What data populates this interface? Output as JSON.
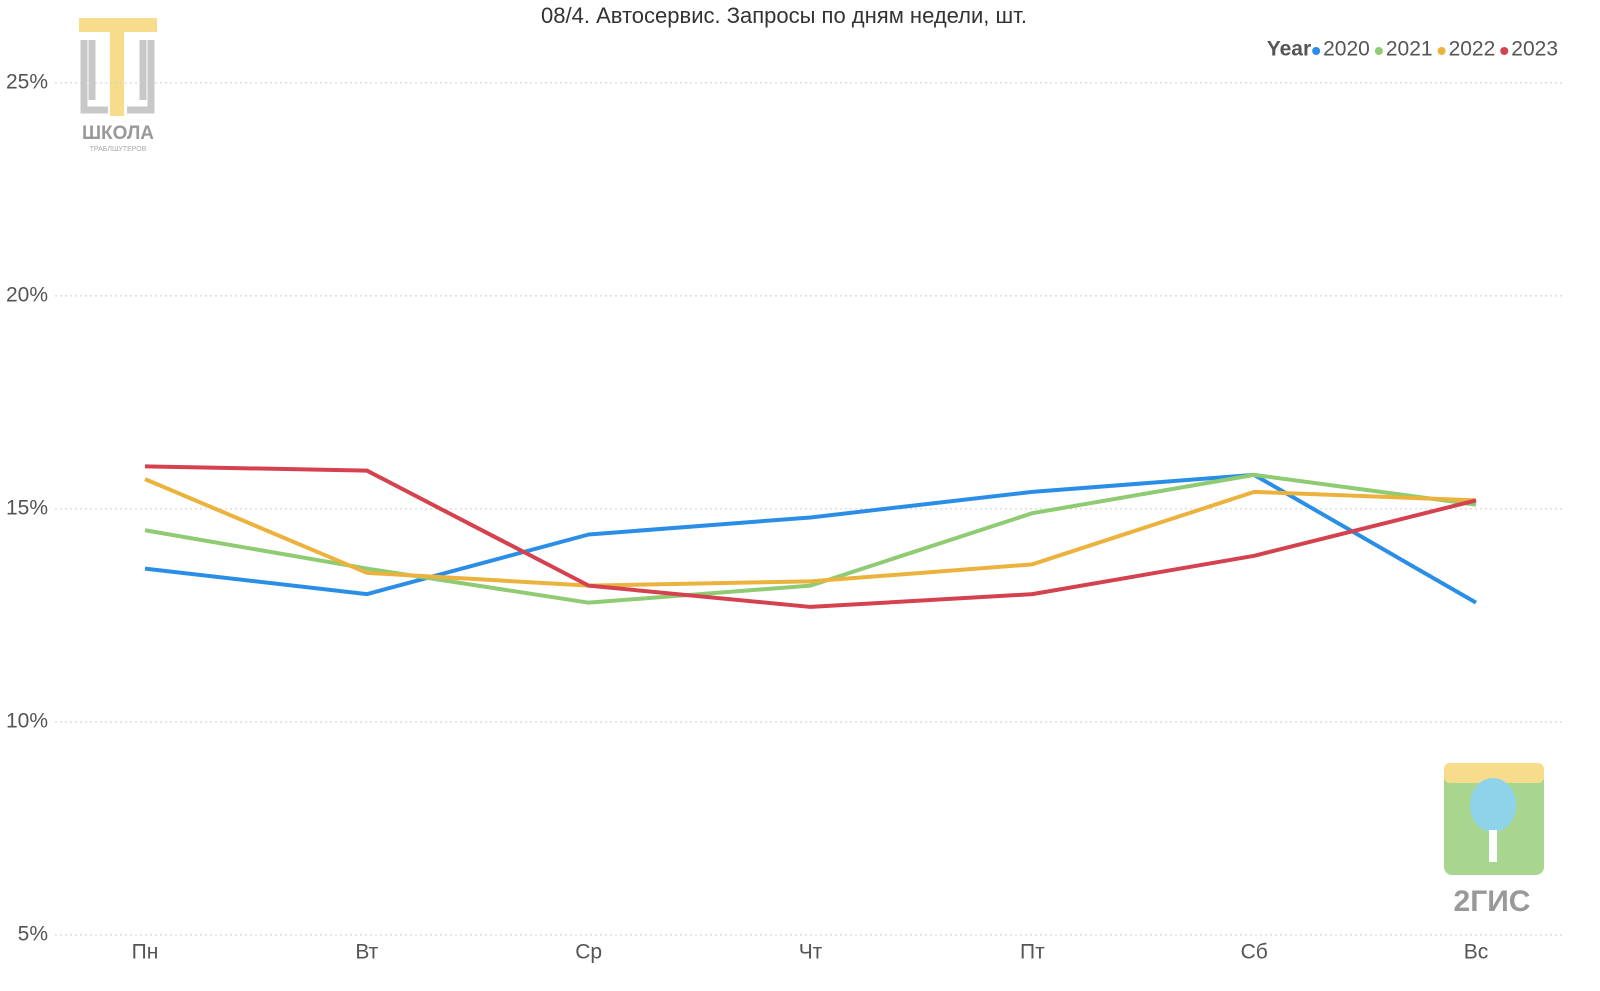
{
  "chart_data": {
    "type": "line",
    "title": "08/4. Автосервис. Запросы по дням недели, шт.",
    "legend_title": "Year",
    "legend_position": "top-right",
    "grid": true,
    "categories": [
      "Пн",
      "Вт",
      "Ср",
      "Чт",
      "Пт",
      "Сб",
      "Вс"
    ],
    "series": [
      {
        "name": "2020",
        "color": "#2b8ee6",
        "values": [
          13.6,
          13.0,
          14.4,
          14.8,
          15.4,
          15.8,
          12.8
        ]
      },
      {
        "name": "2021",
        "color": "#8ecb72",
        "values": [
          14.5,
          13.6,
          12.8,
          13.2,
          14.9,
          15.8,
          15.1
        ]
      },
      {
        "name": "2022",
        "color": "#ecb23e",
        "values": [
          15.7,
          13.5,
          13.2,
          13.3,
          13.7,
          15.4,
          15.2
        ]
      },
      {
        "name": "2023",
        "color": "#d4414f",
        "values": [
          16.0,
          15.9,
          13.2,
          12.7,
          13.0,
          13.9,
          15.2
        ]
      }
    ],
    "ylim": [
      5,
      26.1
    ],
    "yticks": [
      {
        "value": 5,
        "label": "5%"
      },
      {
        "value": 10,
        "label": "10%"
      },
      {
        "value": 15,
        "label": "15%"
      },
      {
        "value": 20,
        "label": "20%"
      },
      {
        "value": 25,
        "label": "25%"
      }
    ]
  },
  "logos": {
    "school": "ШКОЛА",
    "school_sub": "ТРАБЛШУТЕРОВ",
    "gis": "2ГИС"
  }
}
